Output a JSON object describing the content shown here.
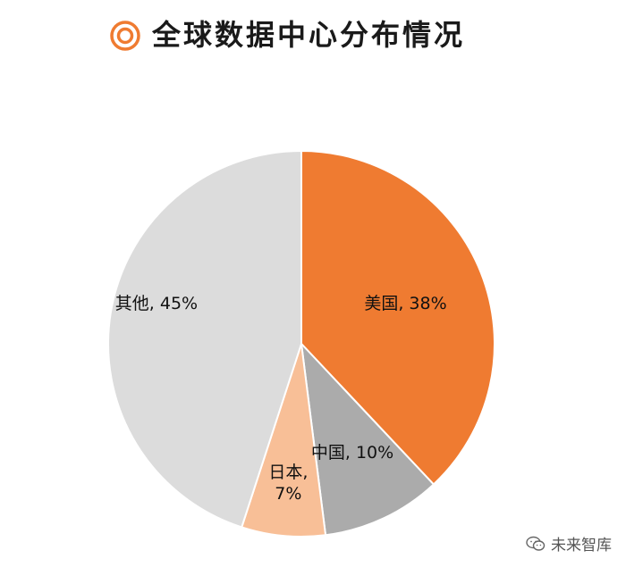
{
  "chart_data": {
    "type": "pie",
    "title": "全球数据中心分布情况",
    "slices": [
      {
        "label": "美国",
        "value": 38,
        "display": "美国, 38%",
        "color": "#ef7b31"
      },
      {
        "label": "中国",
        "value": 10,
        "display": "中国, 10%",
        "color": "#ababab"
      },
      {
        "label": "日本",
        "value": 7,
        "display": "日本,|7%",
        "color": "#f8bf97"
      },
      {
        "label": "其他",
        "value": 45,
        "display": "其他, 45%",
        "color": "#dcdcdc"
      }
    ],
    "unit": "%",
    "start_angle": "12 o'clock",
    "direction": "clockwise"
  },
  "header": {
    "icon": "double-circle-icon",
    "icon_color": "#ef7b31"
  },
  "watermark": {
    "text": "未来智库",
    "icon": "wechat-icon"
  }
}
